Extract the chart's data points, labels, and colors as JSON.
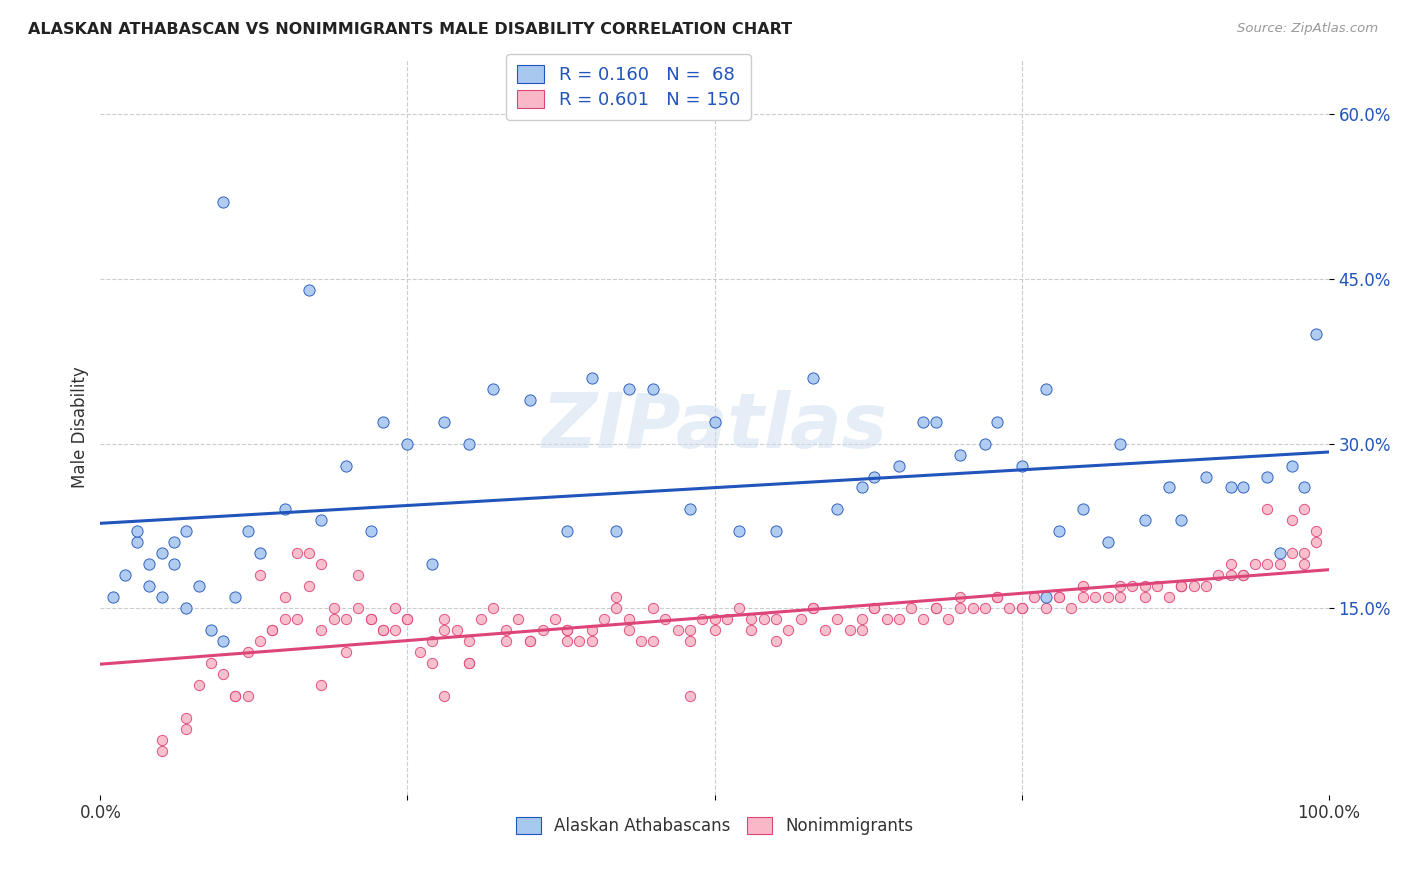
{
  "title": "ALASKAN ATHABASCAN VS NONIMMIGRANTS MALE DISABILITY CORRELATION CHART",
  "source": "Source: ZipAtlas.com",
  "ylabel": "Male Disability",
  "xlim": [
    0.0,
    1.0
  ],
  "ylim": [
    -0.02,
    0.65
  ],
  "blue_R": 0.16,
  "blue_N": 68,
  "pink_R": 0.601,
  "pink_N": 150,
  "blue_color": "#A8C8F0",
  "pink_color": "#F8B8C8",
  "blue_line_color": "#2255BB",
  "pink_line_color": "#DD4477",
  "legend_label_blue": "Alaskan Athabascans",
  "legend_label_pink": "Nonimmigrants",
  "watermark": "ZIPatlas",
  "blue_scatter_x": [
    0.01,
    0.02,
    0.03,
    0.03,
    0.04,
    0.04,
    0.05,
    0.05,
    0.06,
    0.06,
    0.07,
    0.07,
    0.08,
    0.09,
    0.1,
    0.11,
    0.12,
    0.13,
    0.15,
    0.17,
    0.18,
    0.2,
    0.22,
    0.23,
    0.25,
    0.27,
    0.28,
    0.3,
    0.32,
    0.35,
    0.38,
    0.4,
    0.42,
    0.43,
    0.45,
    0.48,
    0.5,
    0.52,
    0.55,
    0.58,
    0.6,
    0.62,
    0.63,
    0.65,
    0.67,
    0.68,
    0.7,
    0.72,
    0.73,
    0.75,
    0.77,
    0.78,
    0.8,
    0.82,
    0.83,
    0.85,
    0.87,
    0.88,
    0.9,
    0.92,
    0.93,
    0.95,
    0.96,
    0.97,
    0.98,
    0.99,
    0.1,
    0.77
  ],
  "blue_scatter_y": [
    0.16,
    0.18,
    0.21,
    0.22,
    0.17,
    0.19,
    0.16,
    0.2,
    0.21,
    0.19,
    0.22,
    0.15,
    0.17,
    0.13,
    0.52,
    0.16,
    0.22,
    0.2,
    0.24,
    0.44,
    0.23,
    0.28,
    0.22,
    0.32,
    0.3,
    0.19,
    0.32,
    0.3,
    0.35,
    0.34,
    0.22,
    0.36,
    0.22,
    0.35,
    0.35,
    0.24,
    0.32,
    0.22,
    0.22,
    0.36,
    0.24,
    0.26,
    0.27,
    0.28,
    0.32,
    0.32,
    0.29,
    0.3,
    0.32,
    0.28,
    0.16,
    0.22,
    0.24,
    0.21,
    0.3,
    0.23,
    0.26,
    0.23,
    0.27,
    0.26,
    0.26,
    0.27,
    0.2,
    0.28,
    0.26,
    0.4,
    0.12,
    0.35
  ],
  "pink_scatter_x": [
    0.05,
    0.07,
    0.08,
    0.09,
    0.1,
    0.11,
    0.12,
    0.13,
    0.14,
    0.15,
    0.16,
    0.17,
    0.18,
    0.18,
    0.19,
    0.2,
    0.21,
    0.22,
    0.23,
    0.24,
    0.25,
    0.26,
    0.27,
    0.28,
    0.29,
    0.3,
    0.31,
    0.32,
    0.33,
    0.34,
    0.35,
    0.36,
    0.37,
    0.38,
    0.39,
    0.4,
    0.41,
    0.42,
    0.43,
    0.44,
    0.45,
    0.46,
    0.47,
    0.48,
    0.49,
    0.5,
    0.51,
    0.52,
    0.53,
    0.54,
    0.55,
    0.56,
    0.57,
    0.58,
    0.59,
    0.6,
    0.61,
    0.62,
    0.63,
    0.64,
    0.65,
    0.66,
    0.67,
    0.68,
    0.69,
    0.7,
    0.71,
    0.72,
    0.73,
    0.74,
    0.75,
    0.76,
    0.77,
    0.78,
    0.79,
    0.8,
    0.81,
    0.82,
    0.83,
    0.84,
    0.85,
    0.86,
    0.87,
    0.88,
    0.89,
    0.9,
    0.91,
    0.92,
    0.93,
    0.94,
    0.95,
    0.96,
    0.97,
    0.98,
    0.99,
    0.99,
    0.98,
    0.97,
    0.13,
    0.16,
    0.2,
    0.22,
    0.25,
    0.27,
    0.3,
    0.35,
    0.4,
    0.11,
    0.14,
    0.18,
    0.23,
    0.28,
    0.33,
    0.38,
    0.43,
    0.48,
    0.53,
    0.58,
    0.63,
    0.68,
    0.73,
    0.78,
    0.83,
    0.88,
    0.93,
    0.98,
    0.15,
    0.42,
    0.55,
    0.62,
    0.3,
    0.45,
    0.5,
    0.7,
    0.85,
    0.92,
    0.05,
    0.07,
    0.12,
    0.28,
    0.48,
    0.38,
    0.75,
    0.8,
    0.88,
    0.95,
    0.17,
    0.19,
    0.21,
    0.24
  ],
  "pink_scatter_y": [
    0.02,
    0.04,
    0.08,
    0.1,
    0.09,
    0.07,
    0.11,
    0.12,
    0.13,
    0.16,
    0.2,
    0.17,
    0.08,
    0.19,
    0.15,
    0.14,
    0.18,
    0.14,
    0.13,
    0.15,
    0.14,
    0.11,
    0.12,
    0.14,
    0.13,
    0.12,
    0.14,
    0.15,
    0.13,
    0.14,
    0.12,
    0.13,
    0.14,
    0.13,
    0.12,
    0.13,
    0.14,
    0.16,
    0.13,
    0.12,
    0.15,
    0.14,
    0.13,
    0.12,
    0.14,
    0.13,
    0.14,
    0.15,
    0.13,
    0.14,
    0.12,
    0.13,
    0.14,
    0.15,
    0.13,
    0.14,
    0.13,
    0.14,
    0.15,
    0.14,
    0.14,
    0.15,
    0.14,
    0.15,
    0.14,
    0.15,
    0.15,
    0.15,
    0.16,
    0.15,
    0.15,
    0.16,
    0.15,
    0.16,
    0.15,
    0.16,
    0.16,
    0.16,
    0.16,
    0.17,
    0.16,
    0.17,
    0.16,
    0.17,
    0.17,
    0.17,
    0.18,
    0.18,
    0.18,
    0.19,
    0.19,
    0.19,
    0.2,
    0.2,
    0.21,
    0.22,
    0.24,
    0.23,
    0.18,
    0.14,
    0.11,
    0.14,
    0.14,
    0.1,
    0.1,
    0.12,
    0.12,
    0.07,
    0.13,
    0.13,
    0.13,
    0.13,
    0.12,
    0.13,
    0.14,
    0.13,
    0.14,
    0.15,
    0.15,
    0.15,
    0.16,
    0.16,
    0.17,
    0.17,
    0.18,
    0.19,
    0.14,
    0.15,
    0.14,
    0.13,
    0.1,
    0.12,
    0.14,
    0.16,
    0.17,
    0.19,
    0.03,
    0.05,
    0.07,
    0.07,
    0.07,
    0.12,
    0.15,
    0.17,
    0.17,
    0.24,
    0.2,
    0.14,
    0.15,
    0.13
  ]
}
